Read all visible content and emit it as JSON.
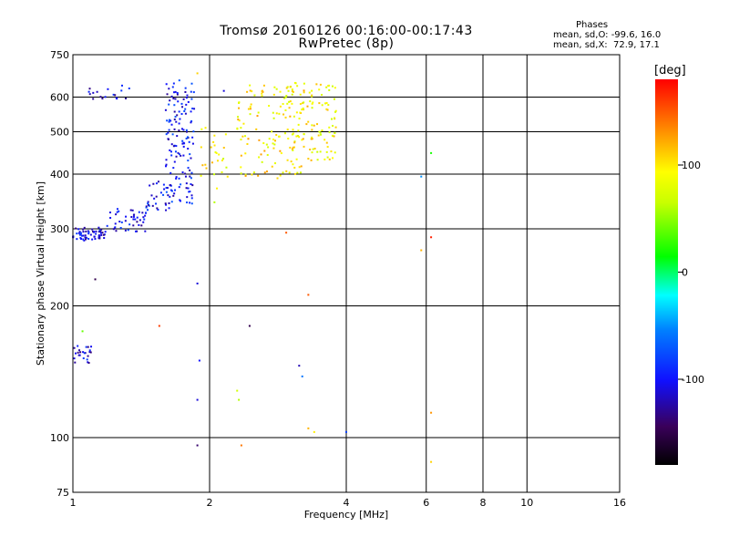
{
  "title_line1": "Tromsø 20160126 00:16:00-00:17:43",
  "title_line2": "RwPretec (8p)",
  "stats": {
    "heading": "Phases",
    "o_line": "mean, sd,O: -99.6, 16.0",
    "x_line": "mean, sd,X:  72.9, 17.1"
  },
  "colorbar": {
    "unit": "[deg]",
    "ticks": [
      {
        "value": 100,
        "label": "100"
      },
      {
        "value": 0,
        "label": "0"
      },
      {
        "value": -100,
        "label": "-100"
      }
    ],
    "range": [
      -180,
      180
    ]
  },
  "chart_data": {
    "type": "scatter",
    "xlabel": "Frequency [MHz]",
    "ylabel": "Stationary phase Virtual Height [km]",
    "xscale": "log",
    "yscale": "log",
    "xlim": [
      1,
      16
    ],
    "ylim": [
      75,
      750
    ],
    "x_ticks": [
      {
        "value": 1,
        "label": "1"
      },
      {
        "value": 2,
        "label": "2"
      },
      {
        "value": 4,
        "label": "4"
      },
      {
        "value": 6,
        "label": "6"
      },
      {
        "value": 8,
        "label": "8"
      },
      {
        "value": 10,
        "label": "10"
      },
      {
        "value": 16,
        "label": "16"
      }
    ],
    "y_ticks": [
      {
        "value": 75,
        "label": "75"
      },
      {
        "value": 100,
        "label": "100"
      },
      {
        "value": 200,
        "label": "200"
      },
      {
        "value": 300,
        "label": "300"
      },
      {
        "value": 400,
        "label": "400"
      },
      {
        "value": 500,
        "label": "500"
      },
      {
        "value": 600,
        "label": "600"
      },
      {
        "value": 750,
        "label": "750"
      }
    ],
    "grid": true,
    "clusters": [
      {
        "x": [
          1.0,
          1.18
        ],
        "y": [
          282,
          302
        ],
        "phase": -110,
        "n": 60
      },
      {
        "x": [
          1.18,
          1.45
        ],
        "y": [
          295,
          335
        ],
        "phase": -105,
        "n": 45
      },
      {
        "x": [
          1.45,
          1.65
        ],
        "y": [
          330,
          390
        ],
        "phase": -100,
        "n": 30
      },
      {
        "x": [
          1.6,
          1.85
        ],
        "y": [
          340,
          660
        ],
        "phase": -100,
        "n": 140
      },
      {
        "x": [
          1.08,
          1.35
        ],
        "y": [
          585,
          640
        ],
        "phase": -110,
        "n": 18
      },
      {
        "x": [
          1.0,
          1.1
        ],
        "y": [
          148,
          162
        ],
        "phase": -110,
        "n": 24
      },
      {
        "x": [
          1.9,
          2.2
        ],
        "y": [
          370,
          520
        ],
        "phase": 95,
        "n": 25
      },
      {
        "x": [
          2.3,
          2.9
        ],
        "y": [
          390,
          650
        ],
        "phase": 100,
        "n": 80
      },
      {
        "x": [
          2.9,
          3.3
        ],
        "y": [
          400,
          650
        ],
        "phase": 95,
        "n": 80
      },
      {
        "x": [
          3.3,
          3.8
        ],
        "y": [
          430,
          650
        ],
        "phase": 95,
        "n": 70
      }
    ],
    "points": [
      {
        "x": 1.12,
        "y": 230,
        "phase": -150
      },
      {
        "x": 1.88,
        "y": 225,
        "phase": -110
      },
      {
        "x": 2.45,
        "y": 180,
        "phase": -150
      },
      {
        "x": 1.55,
        "y": 180,
        "phase": 160
      },
      {
        "x": 1.05,
        "y": 175,
        "phase": 40
      },
      {
        "x": 1.9,
        "y": 150,
        "phase": -100
      },
      {
        "x": 3.15,
        "y": 146,
        "phase": -120
      },
      {
        "x": 3.2,
        "y": 138,
        "phase": -60
      },
      {
        "x": 2.3,
        "y": 128,
        "phase": 70
      },
      {
        "x": 2.32,
        "y": 122,
        "phase": 60
      },
      {
        "x": 1.88,
        "y": 122,
        "phase": -110
      },
      {
        "x": 3.3,
        "y": 105,
        "phase": 120
      },
      {
        "x": 3.4,
        "y": 103,
        "phase": 100
      },
      {
        "x": 4.0,
        "y": 103,
        "phase": -80
      },
      {
        "x": 2.35,
        "y": 96,
        "phase": 140
      },
      {
        "x": 1.88,
        "y": 96,
        "phase": -140
      },
      {
        "x": 2.95,
        "y": 294,
        "phase": 150
      },
      {
        "x": 3.3,
        "y": 212,
        "phase": 150
      },
      {
        "x": 5.85,
        "y": 268,
        "phase": 120
      },
      {
        "x": 6.15,
        "y": 287,
        "phase": 170
      },
      {
        "x": 6.15,
        "y": 447,
        "phase": 20
      },
      {
        "x": 6.15,
        "y": 114,
        "phase": 130
      },
      {
        "x": 6.15,
        "y": 88,
        "phase": 110
      },
      {
        "x": 5.85,
        "y": 395,
        "phase": -50
      },
      {
        "x": 2.05,
        "y": 345,
        "phase": 60
      },
      {
        "x": 2.15,
        "y": 620,
        "phase": -110
      },
      {
        "x": 1.88,
        "y": 680,
        "phase": 110
      }
    ]
  }
}
